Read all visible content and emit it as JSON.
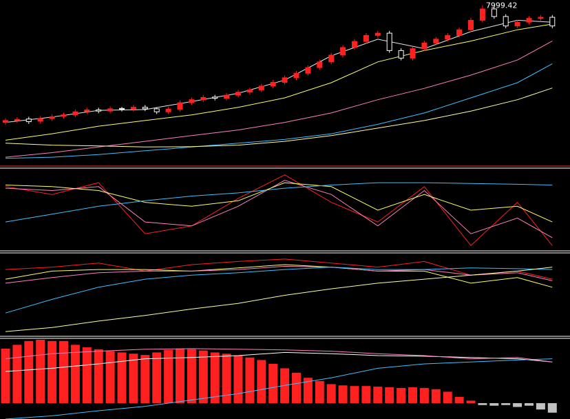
{
  "chart_data": [
    {
      "type": "candlestick",
      "ylim": [
        3800,
        8100
      ],
      "up_color": "#ff2020",
      "down_color": "#ffffff",
      "open": [
        4900,
        4950,
        4990,
        4930,
        5000,
        5060,
        5100,
        5190,
        5230,
        5200,
        5270,
        5250,
        5300,
        5260,
        5180,
        5250,
        5420,
        5500,
        5570,
        5540,
        5620,
        5700,
        5760,
        5860,
        5960,
        6080,
        6200,
        6350,
        6500,
        6680,
        6880,
        7040,
        7200,
        7260,
        6800,
        6600,
        6850,
        7000,
        7100,
        7200,
        7350,
        7600,
        7900,
        7700,
        7450,
        7550,
        7650,
        7680
      ],
      "high": [
        5010,
        5040,
        5050,
        5060,
        5110,
        5160,
        5240,
        5290,
        5290,
        5320,
        5310,
        5360,
        5360,
        5300,
        5310,
        5480,
        5560,
        5620,
        5630,
        5680,
        5760,
        5820,
        5920,
        6020,
        6140,
        6260,
        6410,
        6560,
        6740,
        6940,
        7100,
        7260,
        7320,
        7320,
        6860,
        6910,
        7060,
        7160,
        7260,
        7410,
        7660,
        7999.42,
        7960,
        7760,
        7610,
        7710,
        7740,
        7740
      ],
      "low": [
        4840,
        4890,
        4860,
        4870,
        4940,
        5000,
        5040,
        5130,
        5140,
        5140,
        5190,
        5190,
        5200,
        5120,
        5120,
        5190,
        5360,
        5440,
        5480,
        5480,
        5560,
        5640,
        5700,
        5800,
        5900,
        6020,
        6140,
        6290,
        6440,
        6620,
        6820,
        6980,
        7140,
        6740,
        6540,
        6540,
        6790,
        6940,
        7040,
        7140,
        7290,
        7540,
        7640,
        7390,
        7390,
        7490,
        7590,
        7390
      ],
      "close": [
        4950,
        4980,
        4920,
        5000,
        5050,
        5100,
        5180,
        5230,
        5200,
        5260,
        5250,
        5300,
        5260,
        5180,
        5250,
        5420,
        5500,
        5560,
        5540,
        5620,
        5700,
        5760,
        5860,
        5960,
        6080,
        6200,
        6350,
        6500,
        6680,
        6880,
        7040,
        7200,
        7260,
        6800,
        6600,
        6850,
        7000,
        7100,
        7200,
        7350,
        7600,
        7900,
        7700,
        7450,
        7550,
        7650,
        7680,
        7450
      ],
      "line_x": [
        0,
        4,
        8,
        12,
        16,
        20,
        24,
        28,
        32,
        36,
        40,
        44,
        47
      ],
      "lines": [
        {
          "color": "#e8e8e8",
          "values": [
            4900,
            5040,
            5220,
            5240,
            5450,
            5670,
            6020,
            6660,
            7100,
            6850,
            7300,
            7600,
            7550
          ]
        },
        {
          "color": "#ffff66",
          "values": [
            4430,
            4600,
            4800,
            4950,
            5100,
            5300,
            5550,
            5950,
            6500,
            6800,
            7050,
            7350,
            7500
          ]
        },
        {
          "color": "#ff80c0",
          "values": [
            3980,
            4100,
            4250,
            4400,
            4550,
            4700,
            4900,
            5150,
            5500,
            5800,
            6150,
            6550,
            7050
          ]
        },
        {
          "color": "#40c0ff",
          "values": [
            3950,
            3980,
            4050,
            4150,
            4250,
            4350,
            4450,
            4600,
            4850,
            5150,
            5550,
            5950,
            6450
          ]
        },
        {
          "color": "#ffffa0",
          "values": [
            4350,
            4300,
            4280,
            4250,
            4260,
            4300,
            4400,
            4550,
            4750,
            4950,
            5200,
            5500,
            5810
          ]
        }
      ]
    },
    {
      "type": "line",
      "ylim": [
        0,
        100
      ],
      "line_x": [
        0,
        4,
        8,
        12,
        16,
        20,
        24,
        28,
        32,
        36,
        40,
        44,
        47
      ],
      "lines": [
        {
          "color": "#ff2020",
          "values": [
            80,
            70,
            85,
            20,
            30,
            65,
            95,
            60,
            35,
            80,
            5,
            60,
            5
          ]
        },
        {
          "color": "#ff80c0",
          "values": [
            78,
            75,
            80,
            35,
            30,
            55,
            88,
            70,
            30,
            75,
            20,
            40,
            15
          ]
        },
        {
          "color": "#ffff66",
          "values": [
            82,
            80,
            75,
            60,
            55,
            62,
            85,
            80,
            50,
            70,
            50,
            55,
            35
          ]
        },
        {
          "color": "#40c0ff",
          "values": [
            35,
            45,
            55,
            62,
            68,
            72,
            78,
            82,
            85,
            85,
            84,
            83,
            82
          ]
        }
      ]
    },
    {
      "type": "line",
      "ylim": [
        0,
        100
      ],
      "line_x": [
        0,
        4,
        8,
        12,
        16,
        20,
        24,
        28,
        32,
        36,
        40,
        44,
        47
      ],
      "lines": [
        {
          "color": "#ff2020",
          "values": [
            82,
            85,
            90,
            80,
            88,
            92,
            95,
            90,
            85,
            92,
            75,
            80,
            70
          ]
        },
        {
          "color": "#ffff66",
          "values": [
            70,
            80,
            82,
            82,
            80,
            84,
            88,
            85,
            80,
            80,
            65,
            72,
            60
          ]
        },
        {
          "color": "#ff80c0",
          "values": [
            65,
            72,
            78,
            80,
            80,
            82,
            86,
            85,
            80,
            82,
            75,
            78,
            68
          ]
        },
        {
          "color": "#40c0ff",
          "values": [
            28,
            45,
            60,
            70,
            75,
            78,
            82,
            85,
            82,
            82,
            84,
            83,
            82
          ]
        },
        {
          "color": "#ffffa0",
          "values": [
            5,
            10,
            18,
            25,
            33,
            40,
            50,
            58,
            65,
            70,
            75,
            80,
            85
          ]
        }
      ]
    },
    {
      "type": "bar",
      "ylim": [
        -25,
        100
      ],
      "up_color": "#ff2020",
      "down_color": "#c0c0c0",
      "values": [
        86,
        92,
        98,
        100,
        98,
        98,
        92,
        88,
        85,
        82,
        80,
        78,
        76,
        80,
        84,
        86,
        85,
        83,
        80,
        78,
        75,
        72,
        68,
        62,
        55,
        48,
        40,
        35,
        30,
        28,
        27,
        27,
        26,
        25,
        24,
        25,
        24,
        22,
        18,
        10,
        4,
        -3,
        -4,
        -3,
        -6,
        -4,
        -10,
        -15
      ],
      "line_x": [
        0,
        4,
        8,
        12,
        16,
        20,
        24,
        28,
        32,
        36,
        40,
        44,
        47
      ],
      "lines": [
        {
          "color": "#ffffff",
          "values": [
            50,
            55,
            62,
            70,
            72,
            75,
            80,
            78,
            75,
            74,
            72,
            70,
            65
          ]
        },
        {
          "color": "#40c0ff",
          "values": [
            -25,
            -20,
            -12,
            -5,
            5,
            15,
            28,
            40,
            55,
            62,
            65,
            68,
            70
          ]
        },
        {
          "color": "#ff80c0",
          "values": [
            70,
            78,
            82,
            85,
            86,
            85,
            84,
            82,
            78,
            75,
            70,
            72,
            65
          ]
        }
      ]
    }
  ]
}
